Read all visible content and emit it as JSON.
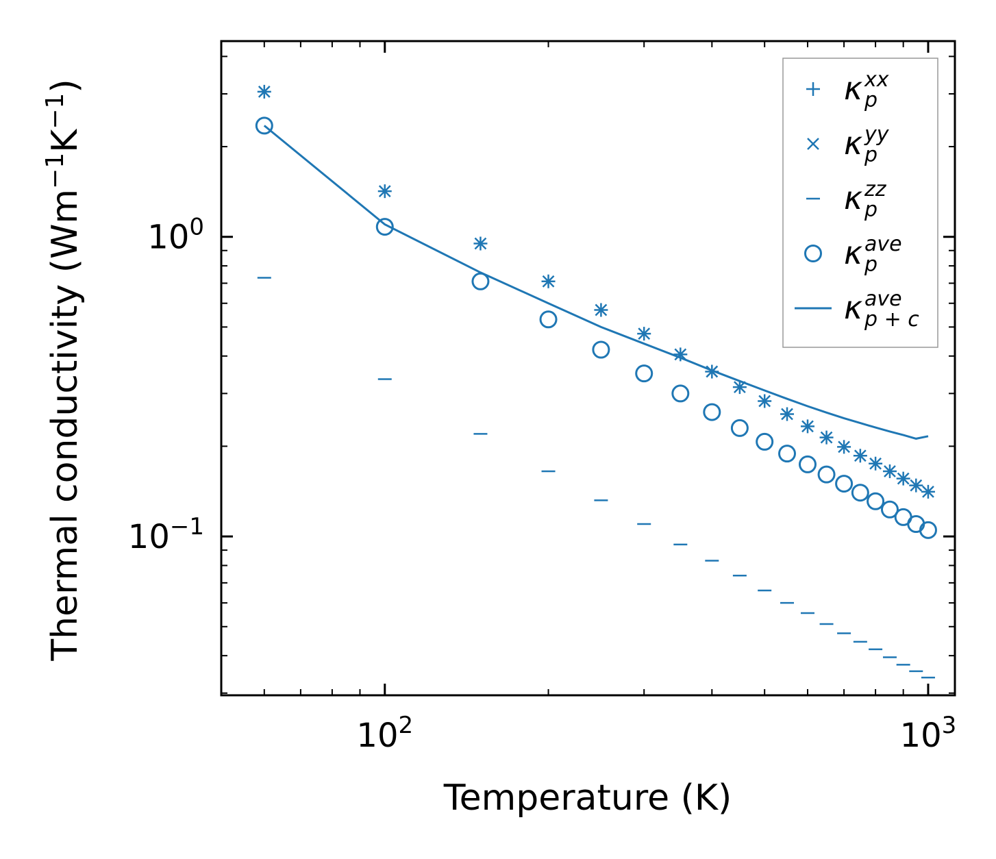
{
  "chart_data": {
    "type": "scatter",
    "xscale": "log",
    "yscale": "log",
    "xlim": [
      50,
      1120
    ],
    "ylim": [
      0.0295,
      4.5
    ],
    "xlabel": "Temperature (K)",
    "ylabel": {
      "base": "Thermal conductivity (Wm",
      "sup1": "−1",
      "mid": "K",
      "sup2": "−1",
      "end": ")"
    },
    "x_ticks": [
      {
        "base": "10",
        "exp": "2",
        "value": 100
      },
      {
        "base": "10",
        "exp": "3",
        "value": 1000
      }
    ],
    "y_ticks": [
      {
        "base": "10",
        "exp": "−1",
        "value": 0.1
      },
      {
        "base": "10",
        "exp": "0",
        "value": 1.0
      }
    ],
    "color": "#1f77b4",
    "legend_position": "top-right",
    "temperatures": [
      60,
      100,
      150,
      200,
      250,
      300,
      350,
      400,
      450,
      500,
      550,
      600,
      650,
      700,
      750,
      800,
      850,
      900,
      950,
      1000
    ],
    "series": [
      {
        "key": "kxx",
        "marker": "plus",
        "label": {
          "sym": "κ",
          "sub": "p",
          "sup": "xx"
        },
        "values": [
          3.05,
          1.42,
          0.95,
          0.71,
          0.57,
          0.475,
          0.405,
          0.355,
          0.315,
          0.283,
          0.256,
          0.233,
          0.214,
          0.199,
          0.186,
          0.175,
          0.165,
          0.156,
          0.148,
          0.141
        ]
      },
      {
        "key": "kyy",
        "marker": "x",
        "label": {
          "sym": "κ",
          "sub": "p",
          "sup": "yy"
        },
        "values": [
          3.05,
          1.42,
          0.95,
          0.71,
          0.57,
          0.475,
          0.405,
          0.355,
          0.315,
          0.283,
          0.256,
          0.233,
          0.214,
          0.199,
          0.186,
          0.175,
          0.165,
          0.156,
          0.148,
          0.141
        ]
      },
      {
        "key": "kzz",
        "marker": "hline",
        "label": {
          "sym": "κ",
          "sub": "p",
          "sup": "zz"
        },
        "values": [
          0.73,
          0.335,
          0.22,
          0.165,
          0.132,
          0.11,
          0.094,
          0.083,
          0.074,
          0.066,
          0.06,
          0.0555,
          0.051,
          0.0475,
          0.0445,
          0.042,
          0.0395,
          0.0373,
          0.0355,
          0.0338
        ]
      },
      {
        "key": "kave",
        "marker": "circle",
        "label": {
          "sym": "κ",
          "sub": "p",
          "sup": "ave"
        },
        "values": [
          2.35,
          1.08,
          0.71,
          0.53,
          0.42,
          0.35,
          0.3,
          0.26,
          0.23,
          0.207,
          0.189,
          0.174,
          0.161,
          0.15,
          0.14,
          0.131,
          0.123,
          0.116,
          0.11,
          0.105
        ]
      },
      {
        "key": "kpc",
        "marker": "line",
        "label": {
          "sym": "κ",
          "sub": "p + c",
          "sup": "ave"
        },
        "x": [
          60,
          100,
          150,
          200,
          250,
          300,
          350,
          400,
          450,
          500,
          550,
          600,
          650,
          700,
          750,
          800,
          850,
          900,
          950,
          1000
        ],
        "values": [
          2.35,
          1.1,
          0.76,
          0.6,
          0.5,
          0.44,
          0.395,
          0.358,
          0.33,
          0.307,
          0.288,
          0.272,
          0.259,
          0.248,
          0.239,
          0.231,
          0.224,
          0.218,
          0.212,
          0.216
        ]
      }
    ]
  }
}
